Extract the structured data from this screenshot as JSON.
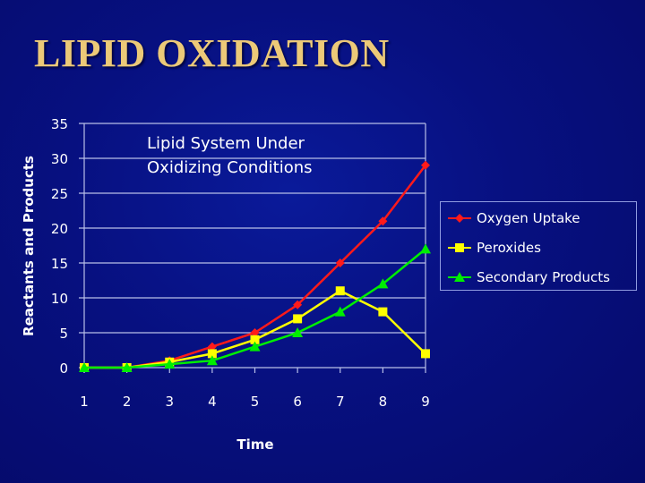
{
  "slide": {
    "title": "LIPID OXIDATION",
    "background_color": "#071080",
    "title_color": "#ecc978"
  },
  "chart_data": {
    "type": "line",
    "title": "",
    "annotation": [
      "Lipid System Under",
      "Oxidizing Conditions"
    ],
    "xlabel": "Time",
    "ylabel": "Reactants and Products",
    "x": [
      1,
      2,
      3,
      4,
      5,
      6,
      7,
      8,
      9
    ],
    "x_tick_labels": [
      "1",
      "2",
      "3",
      "4",
      "5",
      "6",
      "7",
      "8",
      "9"
    ],
    "y_tick_labels": [
      "0",
      "5",
      "10",
      "15",
      "20",
      "25",
      "30",
      "35"
    ],
    "ylim": [
      0,
      35
    ],
    "grid": true,
    "legend_position": "right",
    "series": [
      {
        "name": "Oxygen Uptake",
        "color": "#ff1a1a",
        "marker": "diamond",
        "values": [
          0,
          0,
          1,
          3,
          5,
          9,
          15,
          21,
          29
        ]
      },
      {
        "name": "Peroxides",
        "color": "#ffff00",
        "marker": "square",
        "values": [
          0,
          0,
          0.8,
          2,
          4,
          7,
          11,
          8,
          2
        ]
      },
      {
        "name": "Secondary Products",
        "color": "#00ee00",
        "marker": "triangle",
        "values": [
          0,
          0,
          0.5,
          1,
          3,
          5,
          8,
          12,
          17
        ]
      }
    ]
  }
}
